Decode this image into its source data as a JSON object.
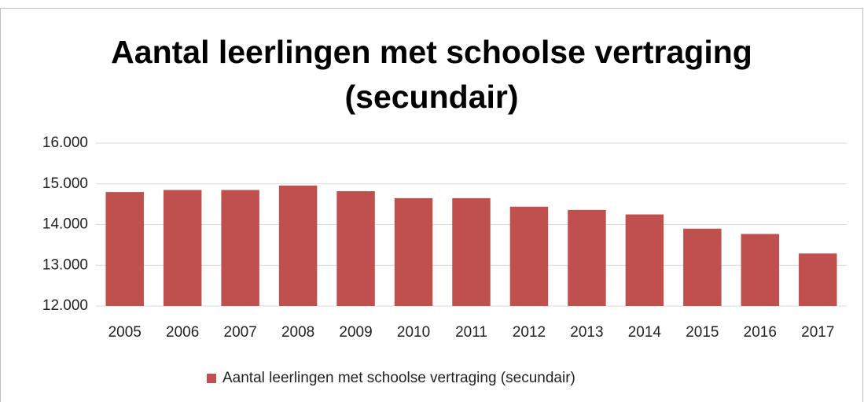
{
  "chart_data": {
    "type": "bar",
    "title": "Aantal leerlingen met schoolse vertraging (secundair)",
    "categories": [
      "2005",
      "2006",
      "2007",
      "2008",
      "2009",
      "2010",
      "2011",
      "2012",
      "2013",
      "2014",
      "2015",
      "2016",
      "2017"
    ],
    "series": [
      {
        "name": "Aantal leerlingen met schoolse vertraging (secundair)",
        "color": "#c0504d",
        "values": [
          14800,
          14850,
          14850,
          14960,
          14820,
          14650,
          14650,
          14440,
          14360,
          14250,
          13900,
          13770,
          13290
        ]
      }
    ],
    "ylim": [
      12000,
      16000
    ],
    "yticks": [
      {
        "value": 12000,
        "label": "12.000"
      },
      {
        "value": 13000,
        "label": "13.000"
      },
      {
        "value": 14000,
        "label": "14.000"
      },
      {
        "value": 15000,
        "label": "15.000"
      },
      {
        "value": 16000,
        "label": "16.000"
      }
    ],
    "grid": true,
    "legend": "bottom"
  }
}
